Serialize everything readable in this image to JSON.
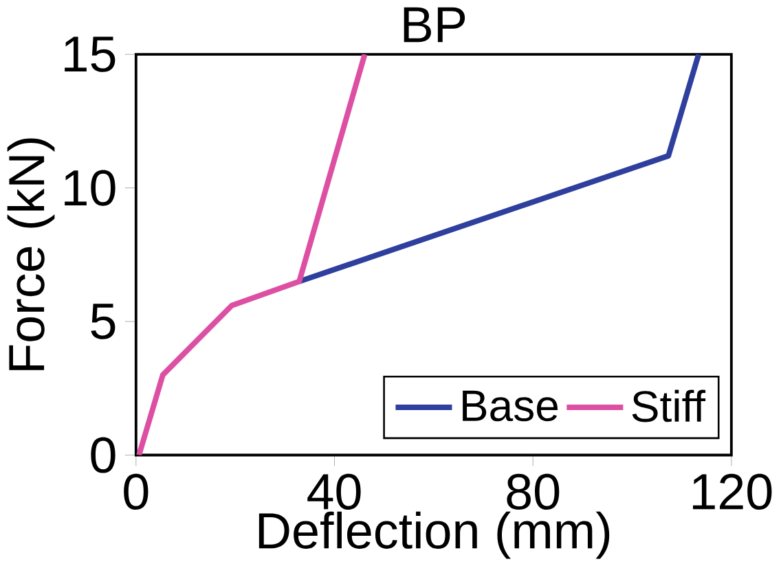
{
  "chart_data": {
    "type": "line",
    "title": "BP",
    "xlabel": "Deflection (mm)",
    "ylabel": "Force (kN)",
    "xlim": [
      0,
      120
    ],
    "ylim": [
      0,
      15
    ],
    "xticks": [
      0,
      40,
      80,
      120
    ],
    "yticks": [
      0,
      5,
      10,
      15
    ],
    "legend": "bottom right",
    "grid": false,
    "marker": "none",
    "line_style": "solid",
    "series": [
      {
        "name": "Base",
        "color": "#2e3f9e",
        "x": [
          32.9,
          107.3,
          113.4
        ],
        "values": [
          6.5,
          11.2,
          15
        ]
      },
      {
        "name": "Stiff",
        "color": "#dd4fa3",
        "x": [
          0.6,
          5.4,
          19.3,
          32.9,
          46.1
        ],
        "values": [
          0,
          3.0,
          5.6,
          6.5,
          15
        ]
      }
    ]
  }
}
